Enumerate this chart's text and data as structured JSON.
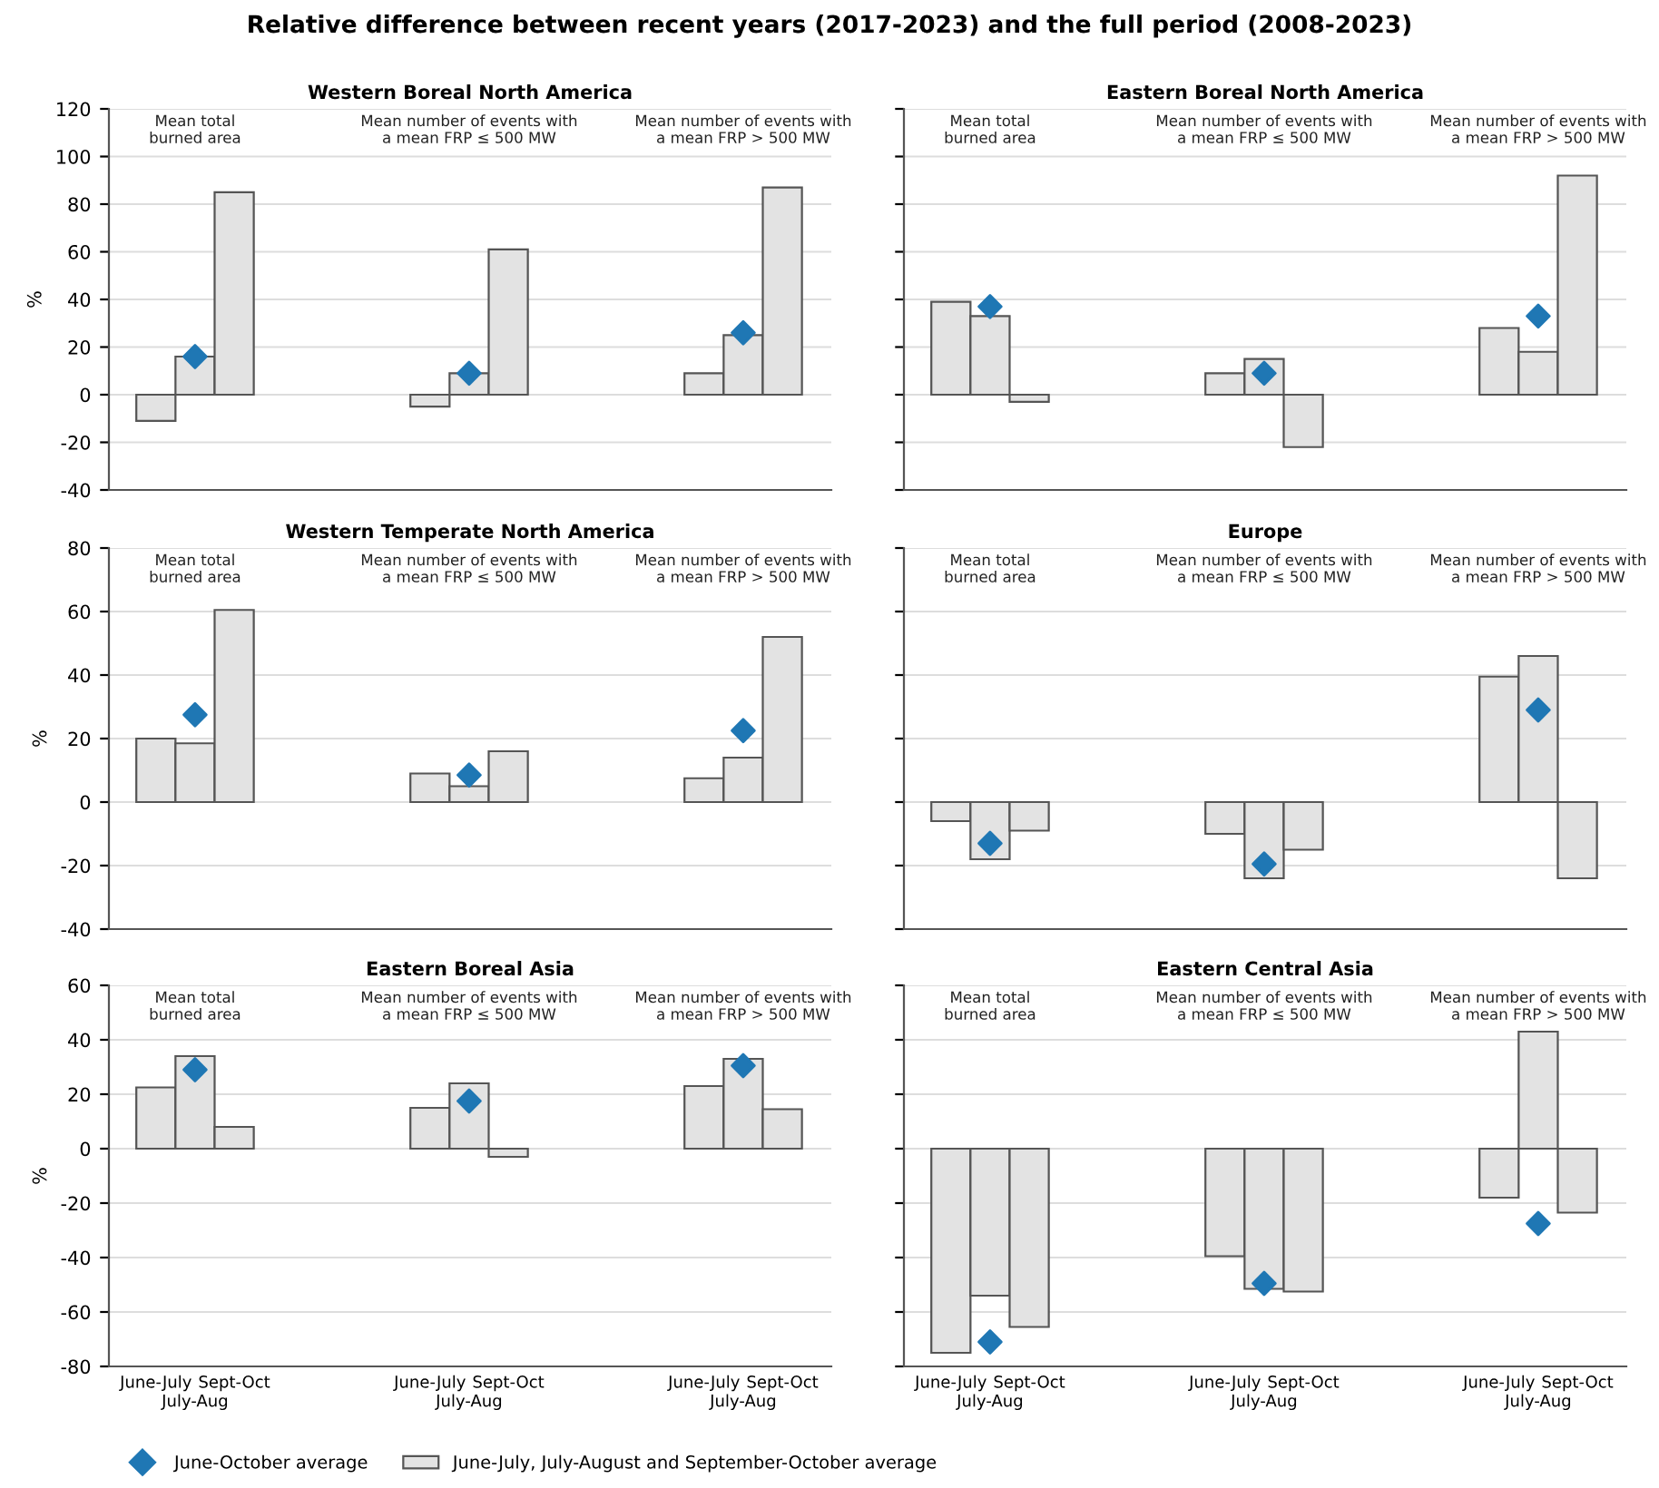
{
  "chart_data": [
    {
      "type": "bar",
      "title": "Western Boreal North America",
      "subtitle": "Relative difference between recent years (2017-2023) and the full period (2008-2023)",
      "ylabel": "%",
      "categories": [
        "June-July",
        "July-Aug",
        "Sept-Oct",
        null,
        null,
        null,
        null,
        "June-July",
        "July-Aug",
        "Sept-Oct",
        null,
        null,
        null,
        null,
        "June-July",
        "July-Aug",
        "Sept-Oct"
      ],
      "annotations": [
        "Mean total\nburned area",
        "Mean number of events with\na mean FRP ≤ 500 MW",
        "Mean number of events with\na mean FRP > 500 MW"
      ],
      "series": [
        {
          "name": "June-July, July-August and September-October average",
          "type": "bar",
          "color": "#e3e3e3",
          "values": [
            -11,
            16,
            85,
            null,
            null,
            null,
            null,
            -5,
            9,
            61,
            null,
            null,
            null,
            null,
            9,
            25,
            87
          ]
        },
        {
          "name": "June-October average",
          "type": "scatter",
          "color": "#1f77b4",
          "values": [
            null,
            16,
            null,
            null,
            null,
            null,
            null,
            null,
            9,
            null,
            null,
            null,
            null,
            null,
            null,
            26,
            null
          ]
        }
      ],
      "ylim": [
        -40,
        120
      ],
      "yticks": [
        -40,
        -20,
        0,
        20,
        40,
        60,
        80,
        100,
        120
      ],
      "grid": "y",
      "tick_labels": "y",
      "marker": "diamond",
      "legend": "bottom"
    },
    {
      "type": "bar",
      "title": "Eastern Boreal North America",
      "categories": [
        "June-July",
        "July-Aug",
        "Sept-Oct",
        null,
        null,
        null,
        null,
        "June-July",
        "July-Aug",
        "Sept-Oct",
        null,
        null,
        null,
        null,
        "June-July",
        "July-Aug",
        "Sept-Oct"
      ],
      "annotations": [
        "Mean total\nburned area",
        "Mean number of events with\na mean FRP ≤ 500 MW",
        "Mean number of events with\na mean FRP > 500 MW"
      ],
      "series": [
        {
          "name": "June-July, July-August and September-October average",
          "type": "bar",
          "color": "#e3e3e3",
          "values": [
            39,
            33,
            -3,
            null,
            null,
            null,
            null,
            9,
            15,
            -22,
            null,
            null,
            null,
            null,
            28,
            18,
            92
          ]
        },
        {
          "name": "June-October average",
          "type": "scatter",
          "color": "#1f77b4",
          "values": [
            null,
            37,
            null,
            null,
            null,
            null,
            null,
            null,
            9,
            null,
            null,
            null,
            null,
            null,
            null,
            33,
            null
          ]
        }
      ],
      "ylim": [
        -40,
        120
      ],
      "yticks": [
        -40,
        -20,
        0,
        20,
        40,
        60,
        80,
        100,
        120
      ],
      "grid": "y",
      "tick_labels": false,
      "marker": "diamond",
      "legend": "bottom"
    },
    {
      "type": "bar",
      "title": "Western Temperate North America",
      "ylabel": "%",
      "categories": [
        "June-July",
        "July-Aug",
        "Sept-Oct",
        null,
        null,
        null,
        null,
        "June-July",
        "July-Aug",
        "Sept-Oct",
        null,
        null,
        null,
        null,
        "June-July",
        "July-Aug",
        "Sept-Oct"
      ],
      "annotations": [
        "Mean total\nburned area",
        "Mean number of events with\na mean FRP ≤ 500 MW",
        "Mean number of events with\na mean FRP > 500 MW"
      ],
      "series": [
        {
          "name": "June-July, July-August and September-October average",
          "type": "bar",
          "color": "#e3e3e3",
          "values": [
            20,
            18.5,
            60.5,
            null,
            null,
            null,
            null,
            9,
            5,
            16,
            null,
            null,
            null,
            null,
            7.5,
            14,
            52
          ]
        },
        {
          "name": "June-October average",
          "type": "scatter",
          "color": "#1f77b4",
          "values": [
            null,
            27.5,
            null,
            null,
            null,
            null,
            null,
            null,
            8.5,
            null,
            null,
            null,
            null,
            null,
            null,
            22.5,
            null
          ]
        }
      ],
      "ylim": [
        -40,
        80
      ],
      "yticks": [
        -40,
        -20,
        0,
        20,
        40,
        60,
        80
      ],
      "grid": "y",
      "tick_labels": "y",
      "marker": "diamond",
      "legend": "bottom"
    },
    {
      "type": "bar",
      "title": "Europe",
      "categories": [
        "June-July",
        "July-Aug",
        "Sept-Oct",
        null,
        null,
        null,
        null,
        "June-July",
        "July-Aug",
        "Sept-Oct",
        null,
        null,
        null,
        null,
        "June-July",
        "July-Aug",
        "Sept-Oct"
      ],
      "annotations": [
        "Mean total\nburned area",
        "Mean number of events with\na mean FRP ≤ 500 MW",
        "Mean number of events with\na mean FRP > 500 MW"
      ],
      "series": [
        {
          "name": "June-July, July-August and September-October average",
          "type": "bar",
          "color": "#e3e3e3",
          "values": [
            -6,
            -18,
            -9,
            null,
            null,
            null,
            null,
            -10,
            -24,
            -15,
            null,
            null,
            null,
            null,
            39.5,
            46,
            -24
          ]
        },
        {
          "name": "June-October average",
          "type": "scatter",
          "color": "#1f77b4",
          "values": [
            null,
            -13,
            null,
            null,
            null,
            null,
            null,
            null,
            -19.5,
            null,
            null,
            null,
            null,
            null,
            null,
            29,
            null
          ]
        }
      ],
      "ylim": [
        -40,
        80
      ],
      "yticks": [
        -40,
        -20,
        0,
        20,
        40,
        60,
        80
      ],
      "grid": "y",
      "tick_labels": false,
      "marker": "diamond",
      "legend": "bottom"
    },
    {
      "type": "bar",
      "title": "Eastern Boreal Asia",
      "ylabel": "%",
      "categories": [
        "June-July",
        "July-Aug",
        "Sept-Oct",
        null,
        null,
        null,
        null,
        "June-July",
        "July-Aug",
        "Sept-Oct",
        null,
        null,
        null,
        null,
        "June-July",
        "July-Aug",
        "Sept-Oct"
      ],
      "annotations": [
        "Mean total\nburned area",
        "Mean number of events with\na mean FRP ≤ 500 MW",
        "Mean number of events with\na mean FRP > 500 MW"
      ],
      "series": [
        {
          "name": "June-July, July-August and September-October average",
          "type": "bar",
          "color": "#e3e3e3",
          "values": [
            22.5,
            34,
            8,
            null,
            null,
            null,
            null,
            15,
            24,
            -3,
            null,
            null,
            null,
            null,
            23,
            33,
            14.5
          ]
        },
        {
          "name": "June-October average",
          "type": "scatter",
          "color": "#1f77b4",
          "values": [
            null,
            29,
            null,
            null,
            null,
            null,
            null,
            null,
            17.5,
            null,
            null,
            null,
            null,
            null,
            null,
            30.5,
            null
          ]
        }
      ],
      "ylim": [
        -80,
        60
      ],
      "yticks": [
        -80,
        -60,
        -40,
        -20,
        0,
        20,
        40,
        60
      ],
      "grid": "y",
      "marker": "diamond",
      "legend": "bottom"
    },
    {
      "type": "bar",
      "title": "Eastern Central Asia",
      "categories": [
        "June-July",
        "July-Aug",
        "Sept-Oct",
        null,
        null,
        null,
        null,
        "June-July",
        "July-Aug",
        "Sept-Oct",
        null,
        null,
        null,
        null,
        "June-July",
        "July-Aug",
        "Sept-Oct"
      ],
      "annotations": [
        "Mean total\nburned area",
        "Mean number of events with\na mean FRP ≤ 500 MW",
        "Mean number of events with\na mean FRP > 500 MW"
      ],
      "series": [
        {
          "name": "June-July, July-August and September-October average",
          "type": "bar",
          "color": "#e3e3e3",
          "values": [
            -75,
            -54,
            -65.5,
            null,
            null,
            null,
            null,
            -39.5,
            -51.5,
            -52.5,
            null,
            null,
            null,
            null,
            -18,
            43,
            -23.5
          ]
        },
        {
          "name": "June-October average",
          "type": "scatter",
          "color": "#1f77b4",
          "values": [
            null,
            -71,
            null,
            null,
            null,
            null,
            null,
            null,
            -49.5,
            null,
            null,
            null,
            null,
            null,
            null,
            -27.5,
            null
          ]
        }
      ],
      "ylim": [
        -80,
        60
      ],
      "yticks": [
        -80,
        -60,
        -40,
        -20,
        0,
        20,
        40,
        60
      ],
      "grid": "y",
      "tick_labels": "x",
      "marker": "diamond",
      "legend": "bottom"
    }
  ]
}
